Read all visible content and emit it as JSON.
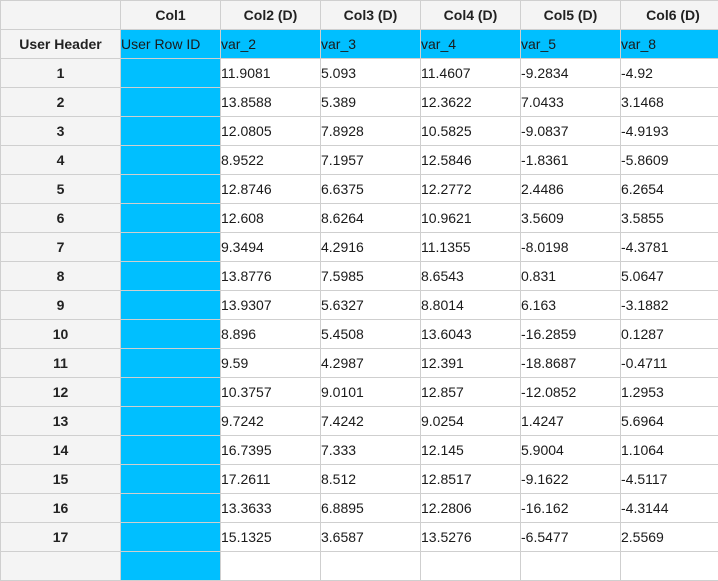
{
  "column_headers": [
    "Col1",
    "Col2 (D)",
    "Col3 (D)",
    "Col4 (D)",
    "Col5 (D)",
    "Col6 (D)"
  ],
  "user_header_row": {
    "label": "User Header",
    "cells": [
      "User Row ID",
      "var_2",
      "var_3",
      "var_4",
      "var_5",
      "var_8"
    ]
  },
  "rows": [
    {
      "id": "1",
      "values": [
        "",
        "11.9081",
        "5.093",
        "11.4607",
        "-9.2834",
        "-4.92"
      ]
    },
    {
      "id": "2",
      "values": [
        "",
        "13.8588",
        "5.389",
        "12.3622",
        "7.0433",
        "3.1468"
      ]
    },
    {
      "id": "3",
      "values": [
        "",
        "12.0805",
        "7.8928",
        "10.5825",
        "-9.0837",
        "-4.9193"
      ]
    },
    {
      "id": "4",
      "values": [
        "",
        "8.9522",
        "7.1957",
        "12.5846",
        "-1.8361",
        "-5.8609"
      ]
    },
    {
      "id": "5",
      "values": [
        "",
        "12.8746",
        "6.6375",
        "12.2772",
        "2.4486",
        "6.2654"
      ]
    },
    {
      "id": "6",
      "values": [
        "",
        "12.608",
        "8.6264",
        "10.9621",
        "3.5609",
        "3.5855"
      ]
    },
    {
      "id": "7",
      "values": [
        "",
        "9.3494",
        "4.2916",
        "11.1355",
        "-8.0198",
        "-4.3781"
      ]
    },
    {
      "id": "8",
      "values": [
        "",
        "13.8776",
        "7.5985",
        "8.6543",
        "0.831",
        "5.0647"
      ]
    },
    {
      "id": "9",
      "values": [
        "",
        "13.9307",
        "5.6327",
        "8.8014",
        "6.163",
        "-3.1882"
      ]
    },
    {
      "id": "10",
      "values": [
        "",
        "8.896",
        "5.4508",
        "13.6043",
        "-16.2859",
        "0.1287"
      ]
    },
    {
      "id": "11",
      "values": [
        "",
        "9.59",
        "4.2987",
        "12.391",
        "-18.8687",
        "-0.4711"
      ]
    },
    {
      "id": "12",
      "values": [
        "",
        "10.3757",
        "9.0101",
        "12.857",
        "-12.0852",
        "1.2953"
      ]
    },
    {
      "id": "13",
      "values": [
        "",
        "9.7242",
        "7.4242",
        "9.0254",
        "1.4247",
        "5.6964"
      ]
    },
    {
      "id": "14",
      "values": [
        "",
        "16.7395",
        "7.333",
        "12.145",
        "5.9004",
        "1.1064"
      ]
    },
    {
      "id": "15",
      "values": [
        "",
        "17.2611",
        "8.512",
        "12.8517",
        "-9.1622",
        "-4.5117"
      ]
    },
    {
      "id": "16",
      "values": [
        "",
        "13.3633",
        "6.8895",
        "12.2806",
        "-16.162",
        "-4.3144"
      ]
    },
    {
      "id": "17",
      "values": [
        "",
        "15.1325",
        "3.6587",
        "13.5276",
        "-6.5477",
        "2.5569"
      ]
    },
    {
      "id": "",
      "values": [
        "",
        "",
        "",
        "",
        "",
        ""
      ]
    }
  ],
  "colors": {
    "highlight": "#00bfff",
    "header_bg": "#f4f4f4",
    "grid_line": "#cfcfcf"
  }
}
